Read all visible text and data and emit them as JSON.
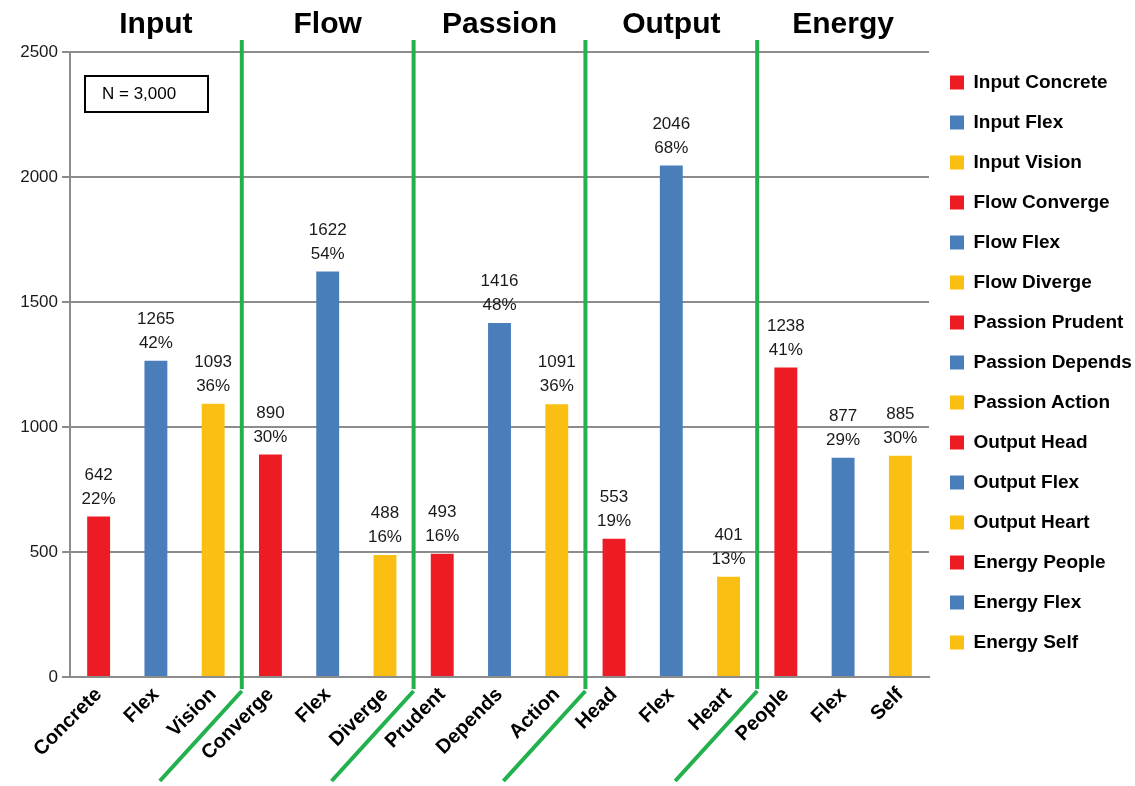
{
  "chart_data": {
    "type": "bar",
    "categories": [
      "Concrete",
      "Flex",
      "Vision",
      "Converge",
      "Flex",
      "Diverge",
      "Prudent",
      "Depends",
      "Action",
      "Head",
      "Flex",
      "Heart",
      "People",
      "Flex",
      "Self"
    ],
    "series": [
      {
        "name": "Input Concrete",
        "color": "#ed1c24",
        "values": [
          642,
          null,
          null,
          null,
          null,
          null,
          null,
          null,
          null,
          null,
          null,
          null,
          null,
          null,
          null
        ],
        "value_labels": [
          "642\n22%",
          null,
          null,
          null,
          null,
          null,
          null,
          null,
          null,
          null,
          null,
          null,
          null,
          null,
          null
        ]
      },
      {
        "name": "Input Flex",
        "color": "#4a7ebb",
        "values": [
          null,
          1265,
          null,
          null,
          null,
          null,
          null,
          null,
          null,
          null,
          null,
          null,
          null,
          null,
          null
        ],
        "value_labels": [
          null,
          "1265\n42%",
          null,
          null,
          null,
          null,
          null,
          null,
          null,
          null,
          null,
          null,
          null,
          null,
          null
        ]
      },
      {
        "name": "Input Vision",
        "color": "#fbbf14",
        "values": [
          null,
          null,
          1093,
          null,
          null,
          null,
          null,
          null,
          null,
          null,
          null,
          null,
          null,
          null,
          null
        ],
        "value_labels": [
          null,
          null,
          "1093\n36%",
          null,
          null,
          null,
          null,
          null,
          null,
          null,
          null,
          null,
          null,
          null,
          null
        ]
      },
      {
        "name": "Flow Converge",
        "color": "#ed1c24",
        "values": [
          null,
          null,
          null,
          890,
          null,
          null,
          null,
          null,
          null,
          null,
          null,
          null,
          null,
          null,
          null
        ],
        "value_labels": [
          null,
          null,
          null,
          "890\n30%",
          null,
          null,
          null,
          null,
          null,
          null,
          null,
          null,
          null,
          null,
          null
        ]
      },
      {
        "name": "Flow Flex",
        "color": "#4a7ebb",
        "values": [
          null,
          null,
          null,
          null,
          1622,
          null,
          null,
          null,
          null,
          null,
          null,
          null,
          null,
          null,
          null
        ],
        "value_labels": [
          null,
          null,
          null,
          null,
          "1622\n54%",
          null,
          null,
          null,
          null,
          null,
          null,
          null,
          null,
          null,
          null
        ]
      },
      {
        "name": "Flow Diverge",
        "color": "#fbbf14",
        "values": [
          null,
          null,
          null,
          null,
          null,
          488,
          null,
          null,
          null,
          null,
          null,
          null,
          null,
          null,
          null
        ],
        "value_labels": [
          null,
          null,
          null,
          null,
          null,
          "488\n16%",
          null,
          null,
          null,
          null,
          null,
          null,
          null,
          null,
          null
        ]
      },
      {
        "name": "Passion Prudent",
        "color": "#ed1c24",
        "values": [
          null,
          null,
          null,
          null,
          null,
          null,
          493,
          null,
          null,
          null,
          null,
          null,
          null,
          null,
          null
        ],
        "value_labels": [
          null,
          null,
          null,
          null,
          null,
          null,
          "493\n16%",
          null,
          null,
          null,
          null,
          null,
          null,
          null,
          null
        ]
      },
      {
        "name": "Passion Depends",
        "color": "#4a7ebb",
        "values": [
          null,
          null,
          null,
          null,
          null,
          null,
          null,
          1416,
          null,
          null,
          null,
          null,
          null,
          null,
          null
        ],
        "value_labels": [
          null,
          null,
          null,
          null,
          null,
          null,
          null,
          "1416\n48%",
          null,
          null,
          null,
          null,
          null,
          null,
          null
        ]
      },
      {
        "name": "Passion Action",
        "color": "#fbbf14",
        "values": [
          null,
          null,
          null,
          null,
          null,
          null,
          null,
          null,
          1091,
          null,
          null,
          null,
          null,
          null,
          null
        ],
        "value_labels": [
          null,
          null,
          null,
          null,
          null,
          null,
          null,
          null,
          "1091\n36%",
          null,
          null,
          null,
          null,
          null,
          null
        ]
      },
      {
        "name": "Output Head",
        "color": "#ed1c24",
        "values": [
          null,
          null,
          null,
          null,
          null,
          null,
          null,
          null,
          null,
          553,
          null,
          null,
          null,
          null,
          null
        ],
        "value_labels": [
          null,
          null,
          null,
          null,
          null,
          null,
          null,
          null,
          null,
          "553\n19%",
          null,
          null,
          null,
          null,
          null
        ]
      },
      {
        "name": "Output Flex",
        "color": "#4a7ebb",
        "values": [
          null,
          null,
          null,
          null,
          null,
          null,
          null,
          null,
          null,
          null,
          2046,
          null,
          null,
          null,
          null
        ],
        "value_labels": [
          null,
          null,
          null,
          null,
          null,
          null,
          null,
          null,
          null,
          null,
          "2046\n68%",
          null,
          null,
          null,
          null
        ]
      },
      {
        "name": "Output Heart",
        "color": "#fbbf14",
        "values": [
          null,
          null,
          null,
          null,
          null,
          null,
          null,
          null,
          null,
          null,
          null,
          401,
          null,
          null,
          null
        ],
        "value_labels": [
          null,
          null,
          null,
          null,
          null,
          null,
          null,
          null,
          null,
          null,
          null,
          "401\n13%",
          null,
          null,
          null
        ]
      },
      {
        "name": "Energy People",
        "color": "#ed1c24",
        "values": [
          null,
          null,
          null,
          null,
          null,
          null,
          null,
          null,
          null,
          null,
          null,
          null,
          1238,
          null,
          null
        ],
        "value_labels": [
          null,
          null,
          null,
          null,
          null,
          null,
          null,
          null,
          null,
          null,
          null,
          null,
          "1238\n41%",
          null,
          null
        ]
      },
      {
        "name": "Energy Flex",
        "color": "#4a7ebb",
        "values": [
          null,
          null,
          null,
          null,
          null,
          null,
          null,
          null,
          null,
          null,
          null,
          null,
          null,
          877,
          null
        ],
        "value_labels": [
          null,
          null,
          null,
          null,
          null,
          null,
          null,
          null,
          null,
          null,
          null,
          null,
          null,
          "877\n29%",
          null
        ]
      },
      {
        "name": "Energy Self",
        "color": "#fbbf14",
        "values": [
          null,
          null,
          null,
          null,
          null,
          null,
          null,
          null,
          null,
          null,
          null,
          null,
          null,
          null,
          885
        ],
        "value_labels": [
          null,
          null,
          null,
          null,
          null,
          null,
          null,
          null,
          null,
          null,
          null,
          null,
          null,
          null,
          "885\n30%"
        ]
      }
    ],
    "ylim": [
      0,
      2500
    ],
    "yticks": [
      0,
      500,
      1000,
      1500,
      2000,
      2500
    ],
    "grid": "y",
    "legend": "right",
    "annotations": [
      "N = 3,000",
      "Input",
      "Flow",
      "Passion",
      "Output",
      "Energy"
    ]
  }
}
